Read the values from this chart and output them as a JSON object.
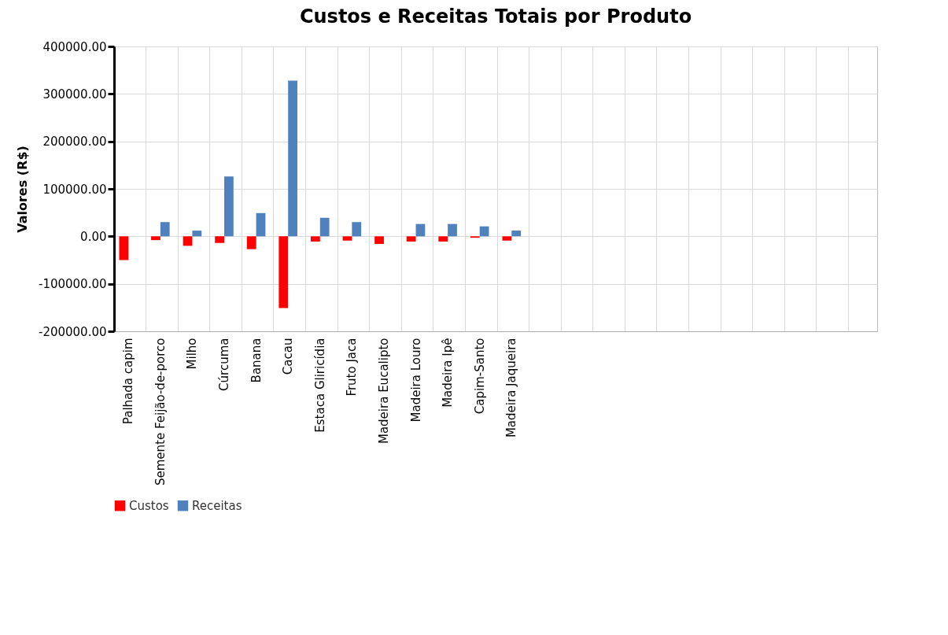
{
  "chart_data": {
    "type": "bar",
    "title": "Custos e Receitas Totais por Produto",
    "ylabel": "Valores (R$)",
    "categories": [
      "Palhada capim",
      "Semente Feijão-de-porco",
      "Milho",
      "Cúrcuma",
      "Banana",
      "Cacau",
      "Estaca Gliricídia",
      "Fruto Jaca",
      "Madeira Eucalipto",
      "Madeira Louro",
      "Madeira Ipê",
      "Capim-Santo",
      "Madeira Jaqueira",
      null,
      null,
      null,
      null,
      null,
      null,
      null,
      null,
      null,
      null,
      null
    ],
    "series": [
      {
        "name": "Custos",
        "color": "#ff0000",
        "values": [
          -50000,
          -8000,
          -20000,
          -14000,
          -27000,
          -151000,
          -11000,
          -9000,
          -16000,
          -11000,
          -11000,
          -3000,
          -9000,
          null,
          null,
          null,
          null,
          null,
          null,
          null,
          null,
          null,
          null,
          null
        ]
      },
      {
        "name": "Receitas",
        "color": "#4f81bd",
        "values": [
          0,
          30000,
          12000,
          126000,
          49000,
          328000,
          39000,
          30000,
          0,
          26000,
          26000,
          21000,
          12000,
          null,
          null,
          null,
          null,
          null,
          null,
          null,
          null,
          null,
          null,
          null
        ]
      }
    ],
    "ylim": [
      -200000,
      400000
    ],
    "yticks": [
      {
        "value": -200000,
        "label": "-200000.00"
      },
      {
        "value": -100000,
        "label": "-100000.00"
      },
      {
        "value": 0,
        "label": "0.00"
      },
      {
        "value": 100000,
        "label": "100000.00"
      },
      {
        "value": 200000,
        "label": "200000.00"
      },
      {
        "value": 300000,
        "label": "300000.00"
      },
      {
        "value": 400000,
        "label": "400000.00"
      }
    ],
    "grid": true,
    "legend": "bottom"
  }
}
